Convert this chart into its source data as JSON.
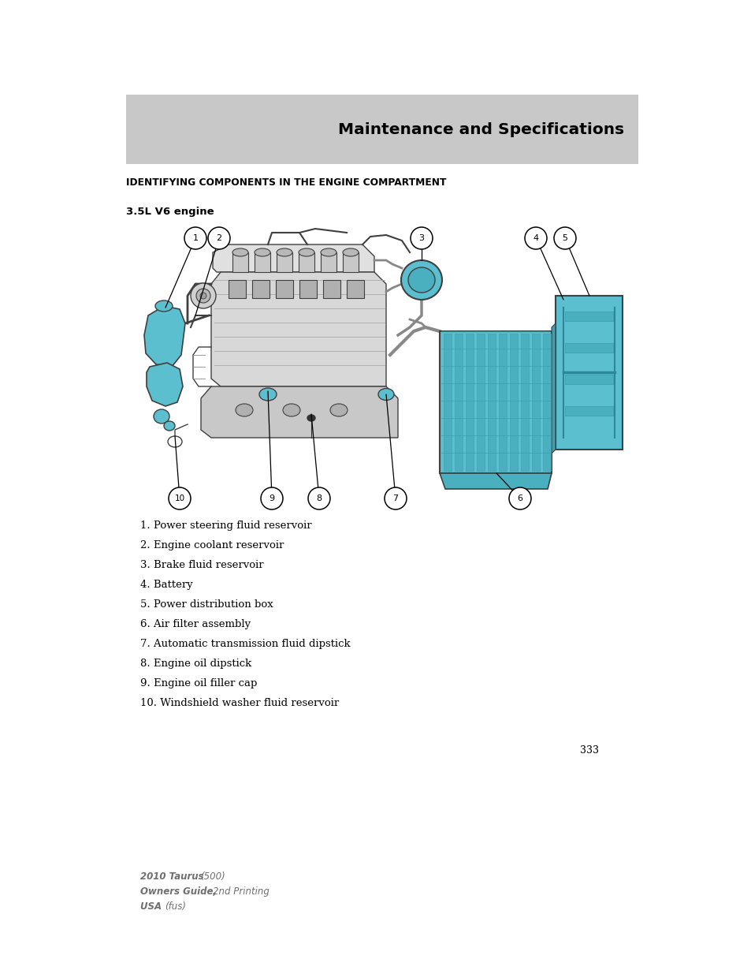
{
  "page_bg": "#ffffff",
  "header_bg": "#c8c8c8",
  "header_text": "Maintenance and Specifications",
  "header_text_color": "#000000",
  "section_title": "IDENTIFYING COMPONENTS IN THE ENGINE COMPARTMENT",
  "subsection_title": "3.5L V6 engine",
  "components": [
    "1. Power steering fluid reservoir",
    "2. Engine coolant reservoir",
    "3. Brake fluid reservoir",
    "4. Battery",
    "5. Power distribution box",
    "6. Air filter assembly",
    "7. Automatic transmission fluid dipstick",
    "8. Engine oil dipstick",
    "9. Engine oil filler cap",
    "10. Windshield washer fluid reservoir"
  ],
  "page_number": "333",
  "footer_line1_bold": "2010 Taurus ",
  "footer_line1_italic": "(500)",
  "footer_line2_bold": "Owners Guide, ",
  "footer_line2_italic": "2nd Printing",
  "footer_line3_bold": "USA ",
  "footer_line3_italic": "(fus)",
  "engine_blue": "#5bbfd0",
  "engine_outline": "#404040",
  "engine_light": "#e8e8e8",
  "engine_mid": "#d0d0d0"
}
